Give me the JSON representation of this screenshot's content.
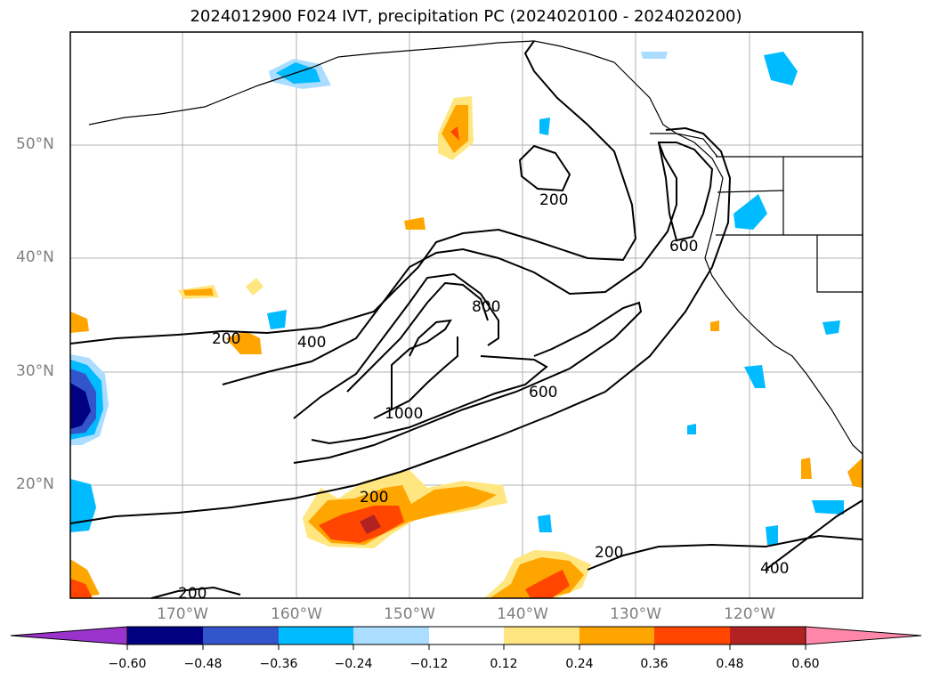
{
  "title": "2024012900 F024 IVT, precipitation PC (2024020100 - 2024020200)",
  "latitude_labels": [
    "50°N",
    "40°N",
    "30°N",
    "20°N"
  ],
  "longitude_labels": [
    "170°W",
    "160°W",
    "150°W",
    "140°W",
    "130°W",
    "120°W"
  ],
  "ivt_contour_labels": [
    "200",
    "200",
    "200",
    "200",
    "200",
    "400",
    "400",
    "600",
    "600",
    "800",
    "1000"
  ],
  "colorbar": {
    "ticks": [
      "−0.60",
      "−0.48",
      "−0.36",
      "−0.24",
      "−0.12",
      "0.12",
      "0.24",
      "0.36",
      "0.48",
      "0.60"
    ],
    "colors": [
      "#9933cc",
      "#000080",
      "#3355cc",
      "#00bbff",
      "#aaddff",
      "#ffffff",
      "#ffe680",
      "#ffa500",
      "#ff4500",
      "#b22222",
      "#ff88aa"
    ]
  }
}
